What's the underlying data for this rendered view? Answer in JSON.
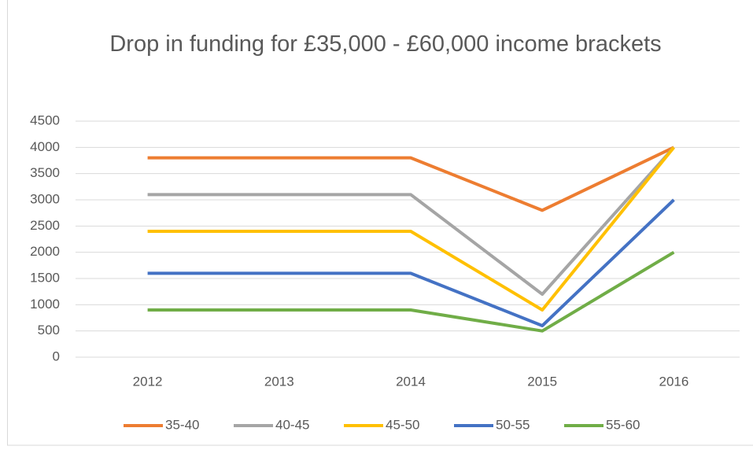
{
  "chart_data": {
    "type": "line",
    "title": "Drop in funding for £35,000 - £60,000 income brackets",
    "categories": [
      "2012",
      "2013",
      "2014",
      "2015",
      "2016"
    ],
    "series": [
      {
        "name": "35-40",
        "color": "#ed7d31",
        "values": [
          3800,
          3800,
          3800,
          2800,
          4000
        ]
      },
      {
        "name": "40-45",
        "color": "#a5a5a5",
        "values": [
          3100,
          3100,
          3100,
          1200,
          4000
        ]
      },
      {
        "name": "45-50",
        "color": "#ffc000",
        "values": [
          2400,
          2400,
          2400,
          900,
          4000
        ]
      },
      {
        "name": "50-55",
        "color": "#4472c4",
        "values": [
          1600,
          1600,
          1600,
          600,
          3000
        ]
      },
      {
        "name": "55-60",
        "color": "#70ad47",
        "values": [
          900,
          900,
          900,
          500,
          2000
        ]
      }
    ],
    "ylim": [
      0,
      4500
    ],
    "yticks": [
      0,
      500,
      1000,
      1500,
      2000,
      2500,
      3000,
      3500,
      4000,
      4500
    ],
    "grid": true,
    "legend": "bottom"
  }
}
